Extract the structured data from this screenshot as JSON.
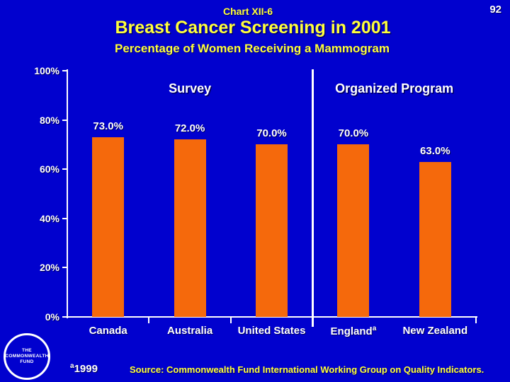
{
  "page_number": "92",
  "header": {
    "chart_label": "Chart XII-6",
    "title": "Breast Cancer Screening in 2001",
    "subtitle": "Percentage of Women Receiving a Mammogram"
  },
  "chart_data": {
    "type": "bar",
    "categories": [
      "Canada",
      "Australia",
      "United States",
      "England",
      "New Zealand"
    ],
    "values": [
      73,
      72,
      70,
      70,
      63
    ],
    "value_labels": [
      "73.0%",
      "72.0%",
      "70.0%",
      "70.0%",
      "63.0%"
    ],
    "category_superscripts": [
      "",
      "",
      "",
      "a",
      ""
    ],
    "group_labels": [
      "Survey",
      "Organized Program"
    ],
    "group_split_after_index": 2,
    "y_ticks": [
      {
        "value": 0,
        "label": "0%"
      },
      {
        "value": 20,
        "label": "20%"
      },
      {
        "value": 40,
        "label": "40%"
      },
      {
        "value": 60,
        "label": "60%"
      },
      {
        "value": 80,
        "label": "80%"
      },
      {
        "value": 100,
        "label": "100%"
      }
    ],
    "ylim": [
      0,
      100
    ],
    "grid": false,
    "legend": false,
    "title": "Breast Cancer Screening in 2001",
    "xlabel": "",
    "ylabel": ""
  },
  "footer": {
    "footnote_marker": "a",
    "footnote_text": "1999",
    "source": "Source: Commonwealth Fund International Working Group on Quality Indicators."
  },
  "logo": {
    "lines": [
      "THE",
      "COMMONWEALTH",
      "FUND"
    ]
  },
  "colors": {
    "background": "#0101CE",
    "bar": "#F5690C",
    "title_text": "#FFFF3B",
    "body_text": "#FFFFFF",
    "axis": "#FFFFFF"
  }
}
